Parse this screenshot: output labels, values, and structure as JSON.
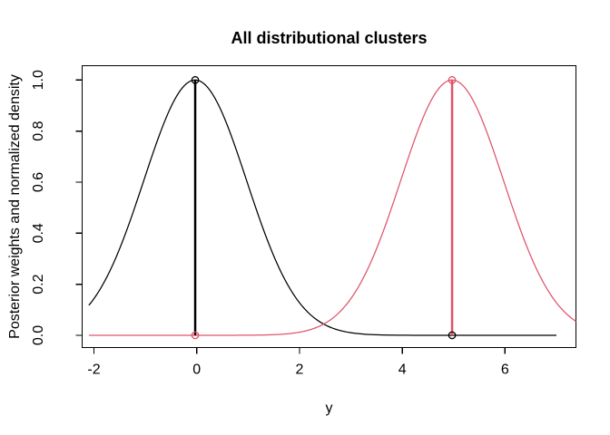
{
  "chart_data": {
    "type": "line",
    "title": "All distributional clusters",
    "xlabel": "y",
    "ylabel": "Posterior weights and normalized density",
    "xlim": [
      -2.23,
      7.38
    ],
    "ylim": [
      -0.048,
      1.056
    ],
    "x_tick_values": [
      -2,
      0,
      2,
      4,
      6
    ],
    "x_tick_labels": [
      "-2",
      "0",
      "2",
      "4",
      "6"
    ],
    "y_tick_values": [
      0.0,
      0.2,
      0.4,
      0.6,
      0.8,
      1.0
    ],
    "y_tick_labels": [
      "0.0",
      "0.2",
      "0.4",
      "0.6",
      "0.8",
      "1.0"
    ],
    "grid": false,
    "legend": "none",
    "frame": "box",
    "frame_color": "#000000",
    "background": "#ffffff",
    "series": [
      {
        "name": "cluster 1 normalized density",
        "color": "#000000",
        "shape": "gaussian",
        "mean": -0.03,
        "sd": 1.0,
        "peak": 1.0,
        "x_range": [
          -2.1,
          7.0
        ]
      },
      {
        "name": "cluster 2 normalized density",
        "color": "#DF536B",
        "shape": "gaussian",
        "mean": 4.97,
        "sd": 1.0,
        "peak": 1.0,
        "x_range": [
          -2.1,
          7.38
        ]
      }
    ],
    "vertical_lines": [
      {
        "name": "cluster 1 weight line",
        "x": -0.03,
        "y0": 0.0,
        "y1": 1.0,
        "color": "#000000"
      },
      {
        "name": "cluster 2 weight line",
        "x": 4.97,
        "y0": 0.0,
        "y1": 1.0,
        "color": "#DF536B"
      }
    ],
    "point_markers": [
      {
        "name": "cluster 1 weight at cluster 1 location",
        "x": -0.03,
        "y": 1.0,
        "color": "#000000"
      },
      {
        "name": "cluster 2 weight at cluster 1 location",
        "x": -0.03,
        "y": 0.0,
        "color": "#DF536B"
      },
      {
        "name": "cluster 2 weight at cluster 2 location",
        "x": 4.97,
        "y": 1.0,
        "color": "#DF536B"
      },
      {
        "name": "cluster 1 weight at cluster 2 location",
        "x": 4.97,
        "y": 0.0,
        "color": "#000000"
      }
    ]
  }
}
